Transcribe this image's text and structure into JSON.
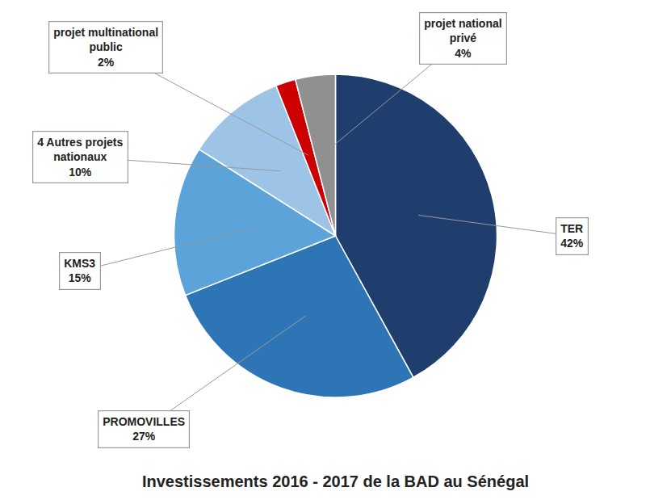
{
  "chart_data": {
    "type": "pie",
    "title": "Investissements 2016 - 2017 de la BAD au Sénégal",
    "categories": [
      "TER",
      "PROMOVILLES",
      "KMS3",
      "4 Autres projets\nnationaux",
      "projet multinational\npublic",
      "projet national\nprivé"
    ],
    "values": [
      42,
      27,
      15,
      10,
      2,
      4
    ],
    "value_labels": [
      "42%",
      "27%",
      "15%",
      "10%",
      "2%",
      "4%"
    ],
    "colors": [
      "#1F3E6E",
      "#2E75B6",
      "#5BA3D9",
      "#9DC3E6",
      "#CC0000",
      "#909090"
    ],
    "data_labels": true
  }
}
